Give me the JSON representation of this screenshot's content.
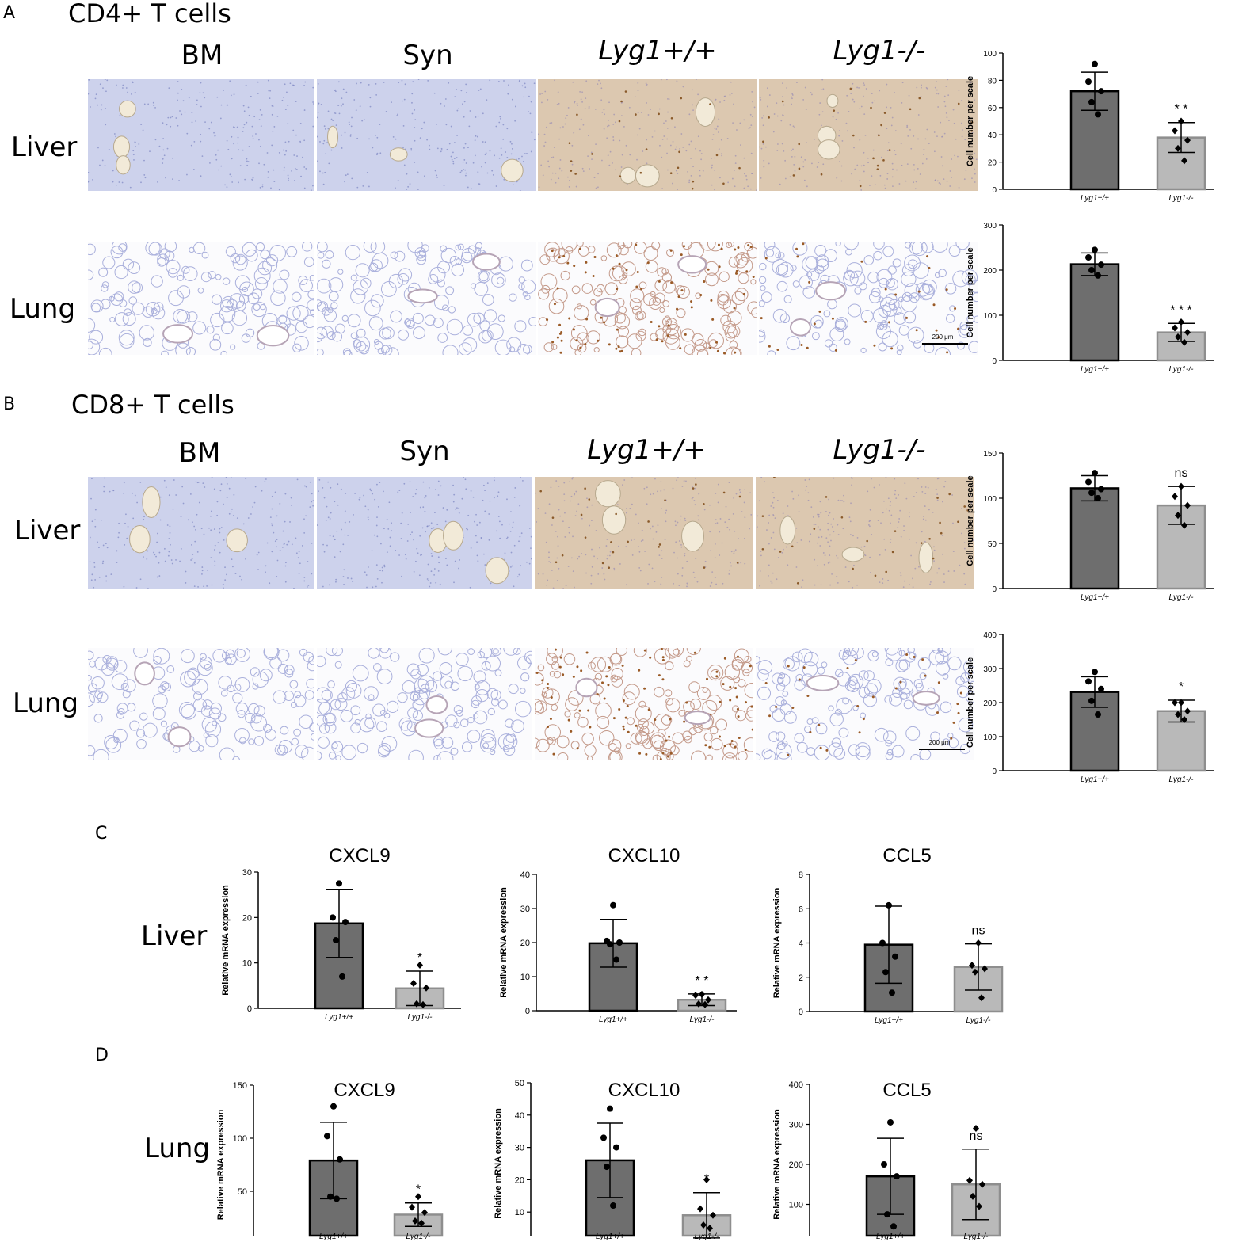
{
  "panels": {
    "A": {
      "letter": "A",
      "title": "CD4+ T cells"
    },
    "B": {
      "letter": "B",
      "title": "CD8+ T cells"
    },
    "C": {
      "letter": "C"
    },
    "D": {
      "letter": "D"
    }
  },
  "columns": [
    "BM",
    "Syn",
    "Lyg1+/+",
    "Lyg1-/-"
  ],
  "rows": {
    "liver": "Liver",
    "lung": "Lung"
  },
  "scale_bar_label": "200 μm",
  "colors": {
    "dark_bar": "#6e6e6e",
    "light_bar": "#b9b9b9",
    "liver_blue": "#cdd2ec",
    "liver_brown": "#dcc8b0",
    "lung_bg": "#fbfbfd"
  },
  "chart_data": [
    {
      "id": "A_liver",
      "type": "bar",
      "categories": [
        "Lyg1+/+",
        "Lyg1-/-"
      ],
      "values": [
        72,
        38
      ],
      "errors": [
        14,
        11
      ],
      "points": [
        [
          92,
          79,
          72,
          64,
          55
        ],
        [
          50,
          43,
          36,
          30,
          21
        ]
      ],
      "markers": [
        "circle",
        "diamond"
      ],
      "ylabel": "Cell number per scale",
      "ylim": [
        0,
        100
      ],
      "ticks": [
        0,
        20,
        40,
        60,
        80,
        100
      ],
      "sig": [
        "",
        "* *"
      ]
    },
    {
      "id": "A_lung",
      "type": "bar",
      "categories": [
        "Lyg1+/+",
        "Lyg1-/-"
      ],
      "values": [
        213,
        62
      ],
      "errors": [
        25,
        20
      ],
      "points": [
        [
          245,
          228,
          212,
          200,
          188
        ],
        [
          85,
          72,
          62,
          52,
          40
        ]
      ],
      "markers": [
        "circle",
        "diamond"
      ],
      "ylabel": "Cell number per scale",
      "ylim": [
        0,
        300
      ],
      "ticks": [
        0,
        100,
        200,
        300
      ],
      "sig": [
        "",
        "* * *"
      ]
    },
    {
      "id": "B_liver",
      "type": "bar",
      "categories": [
        "Lyg1+/+",
        "Lyg1-/-"
      ],
      "values": [
        111,
        92
      ],
      "errors": [
        14,
        21
      ],
      "points": [
        [
          128,
          118,
          110,
          106,
          100
        ],
        [
          113,
          102,
          92,
          81,
          70
        ]
      ],
      "markers": [
        "circle",
        "diamond"
      ],
      "ylabel": "Cell number per scale",
      "ylim": [
        0,
        150
      ],
      "ticks": [
        0,
        50,
        100,
        150
      ],
      "sig": [
        "",
        "ns"
      ]
    },
    {
      "id": "B_lung",
      "type": "bar",
      "categories": [
        "Lyg1+/+",
        "Lyg1-/-"
      ],
      "values": [
        231,
        175
      ],
      "errors": [
        45,
        32
      ],
      "points": [
        [
          290,
          262,
          240,
          205,
          165
        ],
        [
          200,
          200,
          175,
          165,
          150
        ]
      ],
      "markers": [
        "circle",
        "diamond"
      ],
      "ylabel": "Cell number per scale",
      "ylim": [
        0,
        400
      ],
      "ticks": [
        0,
        100,
        200,
        300,
        400
      ],
      "sig": [
        "",
        "*"
      ]
    },
    {
      "id": "C_cxcl9",
      "type": "bar",
      "title": "CXCL9",
      "categories": [
        "Lyg1+/+",
        "Lyg1-/-"
      ],
      "values": [
        18.7,
        4.4
      ],
      "errors": [
        7.5,
        3.8
      ],
      "points": [
        [
          27.5,
          20,
          19,
          15,
          7
        ],
        [
          9.5,
          5.5,
          4.5,
          1,
          0.8
        ]
      ],
      "markers": [
        "circle",
        "diamond"
      ],
      "ylabel": "Relative mRNA expression",
      "ylim": [
        0,
        30
      ],
      "ticks": [
        0,
        10,
        20,
        30
      ],
      "sig": [
        "",
        "*"
      ]
    },
    {
      "id": "C_cxcl10",
      "type": "bar",
      "title": "CXCL10",
      "categories": [
        "Lyg1+/+",
        "Lyg1-/-"
      ],
      "values": [
        19.8,
        3.2
      ],
      "errors": [
        7,
        1.7
      ],
      "points": [
        [
          31,
          20.5,
          20,
          19.5,
          15
        ],
        [
          4.8,
          4.5,
          3.2,
          2,
          1.8
        ]
      ],
      "markers": [
        "circle",
        "diamond"
      ],
      "ylabel": "Relative mRNA expression",
      "ylim": [
        0,
        40
      ],
      "ticks": [
        0,
        10,
        20,
        30,
        40
      ],
      "sig": [
        "",
        "* *"
      ]
    },
    {
      "id": "C_ccl5",
      "type": "bar",
      "title": "CCL5",
      "categories": [
        "Lyg1+/+",
        "Lyg1-/-"
      ],
      "values": [
        3.9,
        2.6
      ],
      "errors": [
        2.25,
        1.35
      ],
      "points": [
        [
          6.2,
          4,
          3.2,
          2.3,
          1.1
        ],
        [
          4,
          2.7,
          2.5,
          2.3,
          0.8
        ]
      ],
      "markers": [
        "circle",
        "diamond"
      ],
      "ylabel": "Relative mRNA expression",
      "ylim": [
        0,
        8
      ],
      "ticks": [
        0,
        2,
        4,
        6,
        8
      ],
      "sig": [
        "",
        "ns"
      ]
    },
    {
      "id": "D_cxcl9",
      "type": "bar",
      "title": "CXCL9",
      "categories": [
        "Lyg1+/+",
        "Lyg1-/-"
      ],
      "values": [
        79,
        28
      ],
      "errors": [
        36,
        11
      ],
      "points": [
        [
          130,
          102,
          80,
          45,
          43
        ],
        [
          45,
          35,
          30,
          22,
          20
        ]
      ],
      "markers": [
        "circle",
        "diamond"
      ],
      "ylabel": "Relative mRNA expression",
      "ylim": [
        0,
        150
      ],
      "ticks": [
        0,
        50,
        100,
        150
      ],
      "sig": [
        "",
        "*"
      ]
    },
    {
      "id": "D_cxcl10",
      "type": "bar",
      "title": "CXCL10",
      "categories": [
        "Lyg1+/+",
        "Lyg1-/-"
      ],
      "values": [
        26,
        9
      ],
      "errors": [
        11.5,
        7
      ],
      "points": [
        [
          42,
          33,
          30,
          24,
          12
        ],
        [
          20,
          11,
          9,
          6,
          5
        ]
      ],
      "markers": [
        "circle",
        "diamond"
      ],
      "ylabel": "Relative mRNA expression",
      "ylim": [
        0,
        50
      ],
      "ticks": [
        0,
        10,
        20,
        30,
        40,
        50
      ],
      "sig": [
        "",
        "*"
      ]
    },
    {
      "id": "D_ccl5",
      "type": "bar",
      "title": "CCL5",
      "categories": [
        "Lyg1+/+",
        "Lyg1-/-"
      ],
      "values": [
        170,
        150
      ],
      "errors": [
        95,
        88
      ],
      "points": [
        [
          305,
          200,
          170,
          75,
          45
        ],
        [
          290,
          160,
          150,
          120,
          95
        ]
      ],
      "markers": [
        "circle",
        "diamond"
      ],
      "ylabel": "Relative mRNA expression",
      "ylim": [
        0,
        400
      ],
      "ticks": [
        0,
        100,
        200,
        300,
        400
      ],
      "sig": [
        "",
        "ns"
      ]
    }
  ]
}
